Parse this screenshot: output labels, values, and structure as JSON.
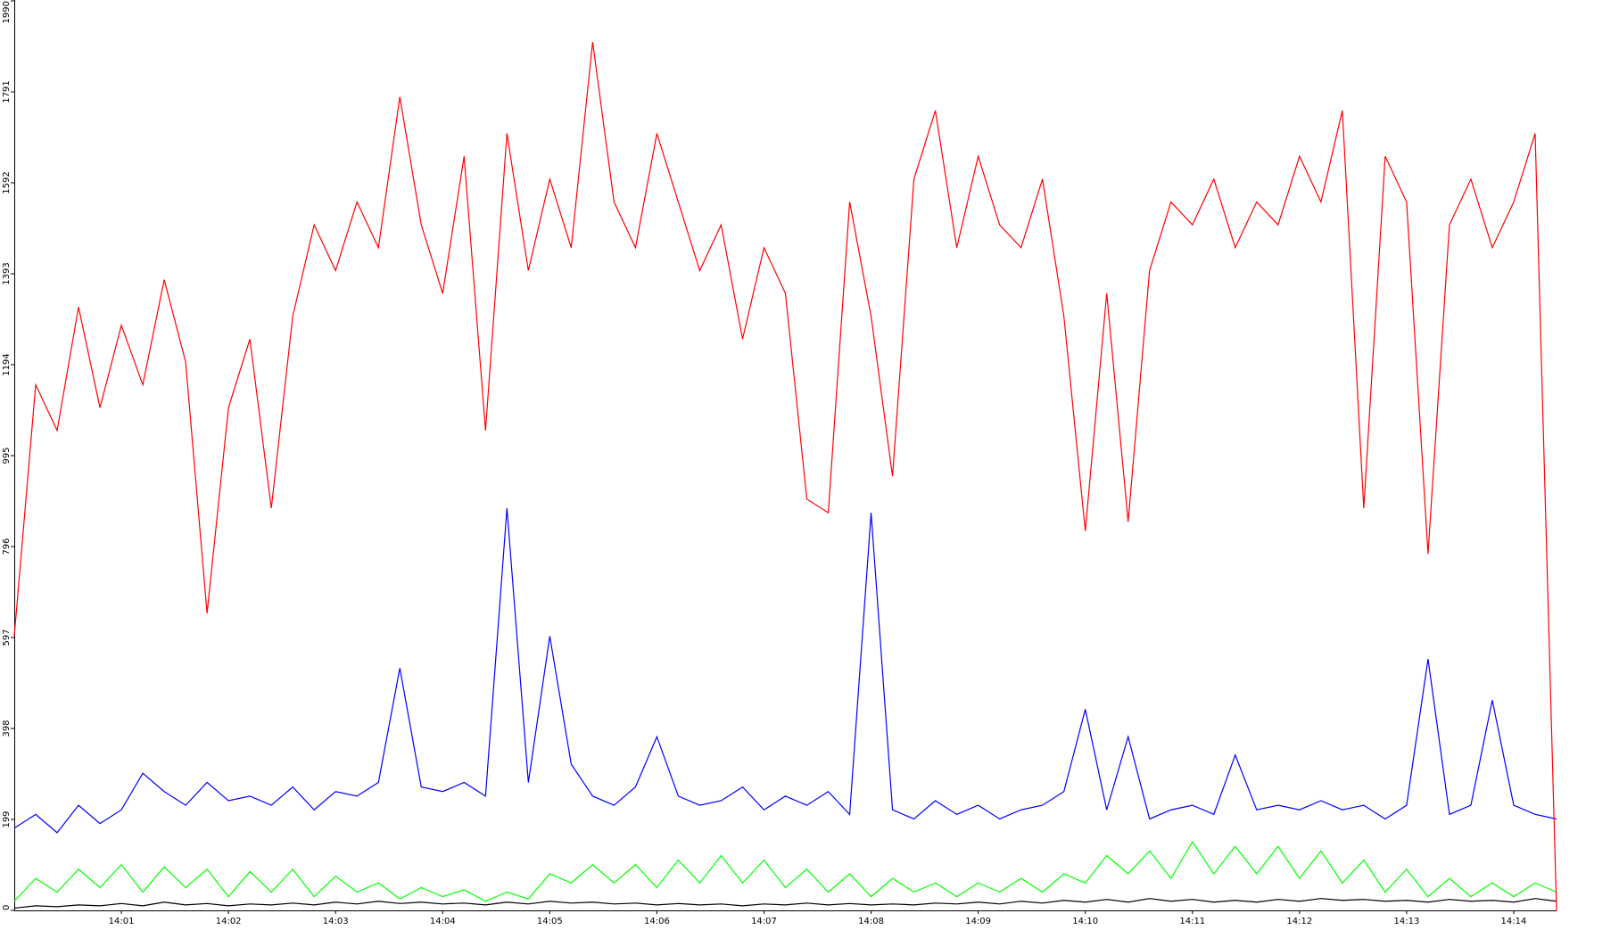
{
  "chart_data": {
    "type": "line",
    "xlim": [
      0,
      72
    ],
    "xticks": [
      {
        "value": 5,
        "label": "14:01"
      },
      {
        "value": 10,
        "label": "14:02"
      },
      {
        "value": 15,
        "label": "14:03"
      },
      {
        "value": 20,
        "label": "14:04"
      },
      {
        "value": 25,
        "label": "14:05"
      },
      {
        "value": 30,
        "label": "14:06"
      },
      {
        "value": 35,
        "label": "14:07"
      },
      {
        "value": 40,
        "label": "14:08"
      },
      {
        "value": 45,
        "label": "14:09"
      },
      {
        "value": 50,
        "label": "14:10"
      },
      {
        "value": 55,
        "label": "14:11"
      },
      {
        "value": 60,
        "label": "14:12"
      },
      {
        "value": 65,
        "label": "14:13"
      },
      {
        "value": 70,
        "label": "14:14"
      }
    ],
    "ylim": [
      0,
      1990
    ],
    "yticks": [
      0,
      199,
      398,
      597,
      796,
      995,
      1194,
      1393,
      1592,
      1791,
      1990
    ],
    "series": [
      {
        "color": "#ff0000",
        "values": [
          600,
          1150,
          1050,
          1320,
          1100,
          1280,
          1150,
          1380,
          1200,
          650,
          1100,
          1250,
          880,
          1300,
          1500,
          1400,
          1550,
          1450,
          1780,
          1500,
          1350,
          1650,
          1050,
          1700,
          1400,
          1600,
          1450,
          1900,
          1550,
          1450,
          1700,
          1550,
          1400,
          1500,
          1250,
          1450,
          1350,
          900,
          870,
          1550,
          1300,
          950,
          1600,
          1750,
          1450,
          1650,
          1500,
          1450,
          1600,
          1300,
          830,
          1350,
          850,
          1400,
          1550,
          1500,
          1600,
          1450,
          1550,
          1500,
          1650,
          1550,
          1750,
          880,
          1650,
          1550,
          780,
          1500,
          1600,
          1450,
          1550,
          1700,
          0
        ]
      },
      {
        "color": "#0000ff",
        "values": [
          180,
          210,
          170,
          230,
          190,
          220,
          300,
          260,
          230,
          280,
          240,
          250,
          230,
          270,
          220,
          260,
          250,
          280,
          530,
          270,
          260,
          280,
          250,
          880,
          280,
          600,
          320,
          250,
          230,
          270,
          380,
          250,
          230,
          240,
          270,
          220,
          250,
          230,
          260,
          210,
          870,
          220,
          200,
          240,
          210,
          230,
          200,
          220,
          230,
          260,
          440,
          220,
          380,
          200,
          220,
          230,
          210,
          340,
          220,
          230,
          220,
          240,
          220,
          230,
          200,
          230,
          550,
          210,
          230,
          460,
          230,
          210,
          200
        ]
      },
      {
        "color": "#00ff00",
        "values": [
          20,
          70,
          40,
          90,
          50,
          100,
          40,
          95,
          50,
          90,
          30,
          85,
          40,
          90,
          30,
          75,
          40,
          60,
          25,
          50,
          30,
          45,
          20,
          40,
          25,
          80,
          60,
          100,
          60,
          100,
          50,
          110,
          60,
          120,
          60,
          110,
          50,
          90,
          40,
          80,
          30,
          70,
          40,
          60,
          30,
          60,
          40,
          70,
          40,
          80,
          60,
          120,
          80,
          130,
          70,
          150,
          80,
          140,
          80,
          140,
          70,
          130,
          60,
          110,
          40,
          90,
          30,
          70,
          30,
          60,
          30,
          60,
          40
        ]
      },
      {
        "color": "#000000",
        "values": [
          5,
          10,
          8,
          12,
          10,
          15,
          10,
          18,
          12,
          15,
          10,
          14,
          12,
          16,
          12,
          18,
          14,
          20,
          15,
          18,
          14,
          16,
          12,
          18,
          14,
          20,
          16,
          18,
          14,
          16,
          12,
          15,
          12,
          14,
          10,
          14,
          12,
          16,
          12,
          15,
          12,
          14,
          12,
          16,
          14,
          18,
          14,
          20,
          16,
          22,
          18,
          24,
          18,
          26,
          20,
          24,
          18,
          22,
          18,
          24,
          20,
          26,
          22,
          24,
          20,
          22,
          18,
          24,
          20,
          22,
          18,
          26,
          20
        ]
      }
    ]
  }
}
